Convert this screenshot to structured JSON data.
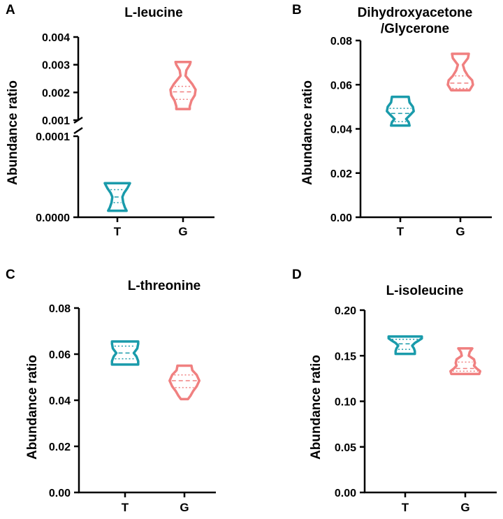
{
  "colors": {
    "T": "#1a9bab",
    "G": "#f08080",
    "axis": "#000000"
  },
  "chart_data": [
    {
      "panel": "A",
      "type": "violin",
      "title": [
        "L-leucine"
      ],
      "ylabel": "Abundance ratio",
      "categories": [
        "T",
        "G"
      ],
      "broken_axis": true,
      "yticks_lower": [
        "0.0000",
        "0.0001"
      ],
      "yticks_upper": [
        "0.001",
        "0.002",
        "0.003",
        "0.004"
      ],
      "ylim_lower": [
        0,
        0.0001
      ],
      "ylim_upper": [
        0.001,
        0.004
      ],
      "series": [
        {
          "name": "T",
          "min": 8e-06,
          "q1": 1.8e-05,
          "median": 2.5e-05,
          "q3": 3.4e-05,
          "max": 4.2e-05,
          "profile": [
            [
              8e-06,
              0.55
            ],
            [
              1.2e-05,
              0.45
            ],
            [
              1.8e-05,
              0.35
            ],
            [
              2.5e-05,
              0.3
            ],
            [
              3e-05,
              0.4
            ],
            [
              3.6e-05,
              0.6
            ],
            [
              4.2e-05,
              0.75
            ]
          ]
        },
        {
          "name": "G",
          "min": 0.0014,
          "q1": 0.00175,
          "median": 0.00202,
          "q3": 0.00222,
          "max": 0.0031,
          "profile": [
            [
              0.0014,
              0.4
            ],
            [
              0.0015,
              0.4
            ],
            [
              0.0017,
              0.5
            ],
            [
              0.0019,
              0.7
            ],
            [
              0.0021,
              0.75
            ],
            [
              0.0023,
              0.55
            ],
            [
              0.0026,
              0.15
            ],
            [
              0.0028,
              0.2
            ],
            [
              0.003,
              0.4
            ],
            [
              0.0031,
              0.45
            ]
          ]
        }
      ]
    },
    {
      "panel": "B",
      "type": "violin",
      "title": [
        "Dihydroxyacetone",
        "/Glycerone"
      ],
      "ylabel": "Abundance ratio",
      "categories": [
        "T",
        "G"
      ],
      "yticks": [
        "0.00",
        "0.02",
        "0.04",
        "0.06",
        "0.08"
      ],
      "ylim": [
        0,
        0.08
      ],
      "series": [
        {
          "name": "T",
          "min": 0.0415,
          "q1": 0.0433,
          "median": 0.047,
          "q3": 0.0493,
          "max": 0.0545,
          "profile": [
            [
              0.0415,
              0.55
            ],
            [
              0.043,
              0.5
            ],
            [
              0.0445,
              0.35
            ],
            [
              0.046,
              0.55
            ],
            [
              0.048,
              0.8
            ],
            [
              0.05,
              0.75
            ],
            [
              0.052,
              0.55
            ],
            [
              0.0545,
              0.5
            ]
          ]
        },
        {
          "name": "G",
          "min": 0.0575,
          "q1": 0.0583,
          "median": 0.0607,
          "q3": 0.064,
          "max": 0.074,
          "profile": [
            [
              0.0575,
              0.55
            ],
            [
              0.06,
              0.75
            ],
            [
              0.062,
              0.7
            ],
            [
              0.064,
              0.45
            ],
            [
              0.0665,
              0.25
            ],
            [
              0.069,
              0.15
            ],
            [
              0.072,
              0.45
            ],
            [
              0.074,
              0.5
            ]
          ]
        }
      ]
    },
    {
      "panel": "C",
      "type": "violin",
      "title": [
        "L-threonine"
      ],
      "ylabel": "Abundance ratio",
      "categories": [
        "T",
        "G"
      ],
      "yticks": [
        "0.00",
        "0.02",
        "0.04",
        "0.06",
        "0.08"
      ],
      "ylim": [
        0,
        0.08
      ],
      "series": [
        {
          "name": "T",
          "min": 0.0555,
          "q1": 0.058,
          "median": 0.0605,
          "q3": 0.0635,
          "max": 0.0655,
          "profile": [
            [
              0.0555,
              0.75
            ],
            [
              0.057,
              0.75
            ],
            [
              0.059,
              0.65
            ],
            [
              0.0605,
              0.5
            ],
            [
              0.0625,
              0.7
            ],
            [
              0.0645,
              0.75
            ],
            [
              0.0655,
              0.75
            ]
          ]
        },
        {
          "name": "G",
          "min": 0.0405,
          "q1": 0.0455,
          "median": 0.0485,
          "q3": 0.051,
          "max": 0.055,
          "profile": [
            [
              0.0405,
              0.2
            ],
            [
              0.042,
              0.35
            ],
            [
              0.044,
              0.5
            ],
            [
              0.046,
              0.7
            ],
            [
              0.0485,
              0.85
            ],
            [
              0.051,
              0.7
            ],
            [
              0.053,
              0.45
            ],
            [
              0.055,
              0.4
            ]
          ]
        }
      ]
    },
    {
      "panel": "D",
      "type": "violin",
      "title": [
        "L-isoleucine"
      ],
      "ylabel": "Abundance ratio",
      "categories": [
        "T",
        "G"
      ],
      "yticks": [
        "0.00",
        "0.05",
        "0.10",
        "0.15",
        "0.20"
      ],
      "ylim": [
        0,
        0.2
      ],
      "series": [
        {
          "name": "T",
          "min": 0.152,
          "q1": 0.157,
          "median": 0.163,
          "q3": 0.168,
          "max": 0.171,
          "profile": [
            [
              0.152,
              0.55
            ],
            [
              0.155,
              0.55
            ],
            [
              0.158,
              0.5
            ],
            [
              0.161,
              0.4
            ],
            [
              0.164,
              0.55
            ],
            [
              0.167,
              0.8
            ],
            [
              0.169,
              0.95
            ],
            [
              0.171,
              0.95
            ]
          ]
        },
        {
          "name": "G",
          "min": 0.13,
          "q1": 0.133,
          "median": 0.136,
          "q3": 0.143,
          "max": 0.158,
          "profile": [
            [
              0.13,
              0.8
            ],
            [
              0.133,
              0.85
            ],
            [
              0.136,
              0.65
            ],
            [
              0.139,
              0.5
            ],
            [
              0.142,
              0.55
            ],
            [
              0.146,
              0.5
            ],
            [
              0.15,
              0.2
            ],
            [
              0.154,
              0.25
            ],
            [
              0.158,
              0.4
            ]
          ]
        }
      ]
    }
  ]
}
